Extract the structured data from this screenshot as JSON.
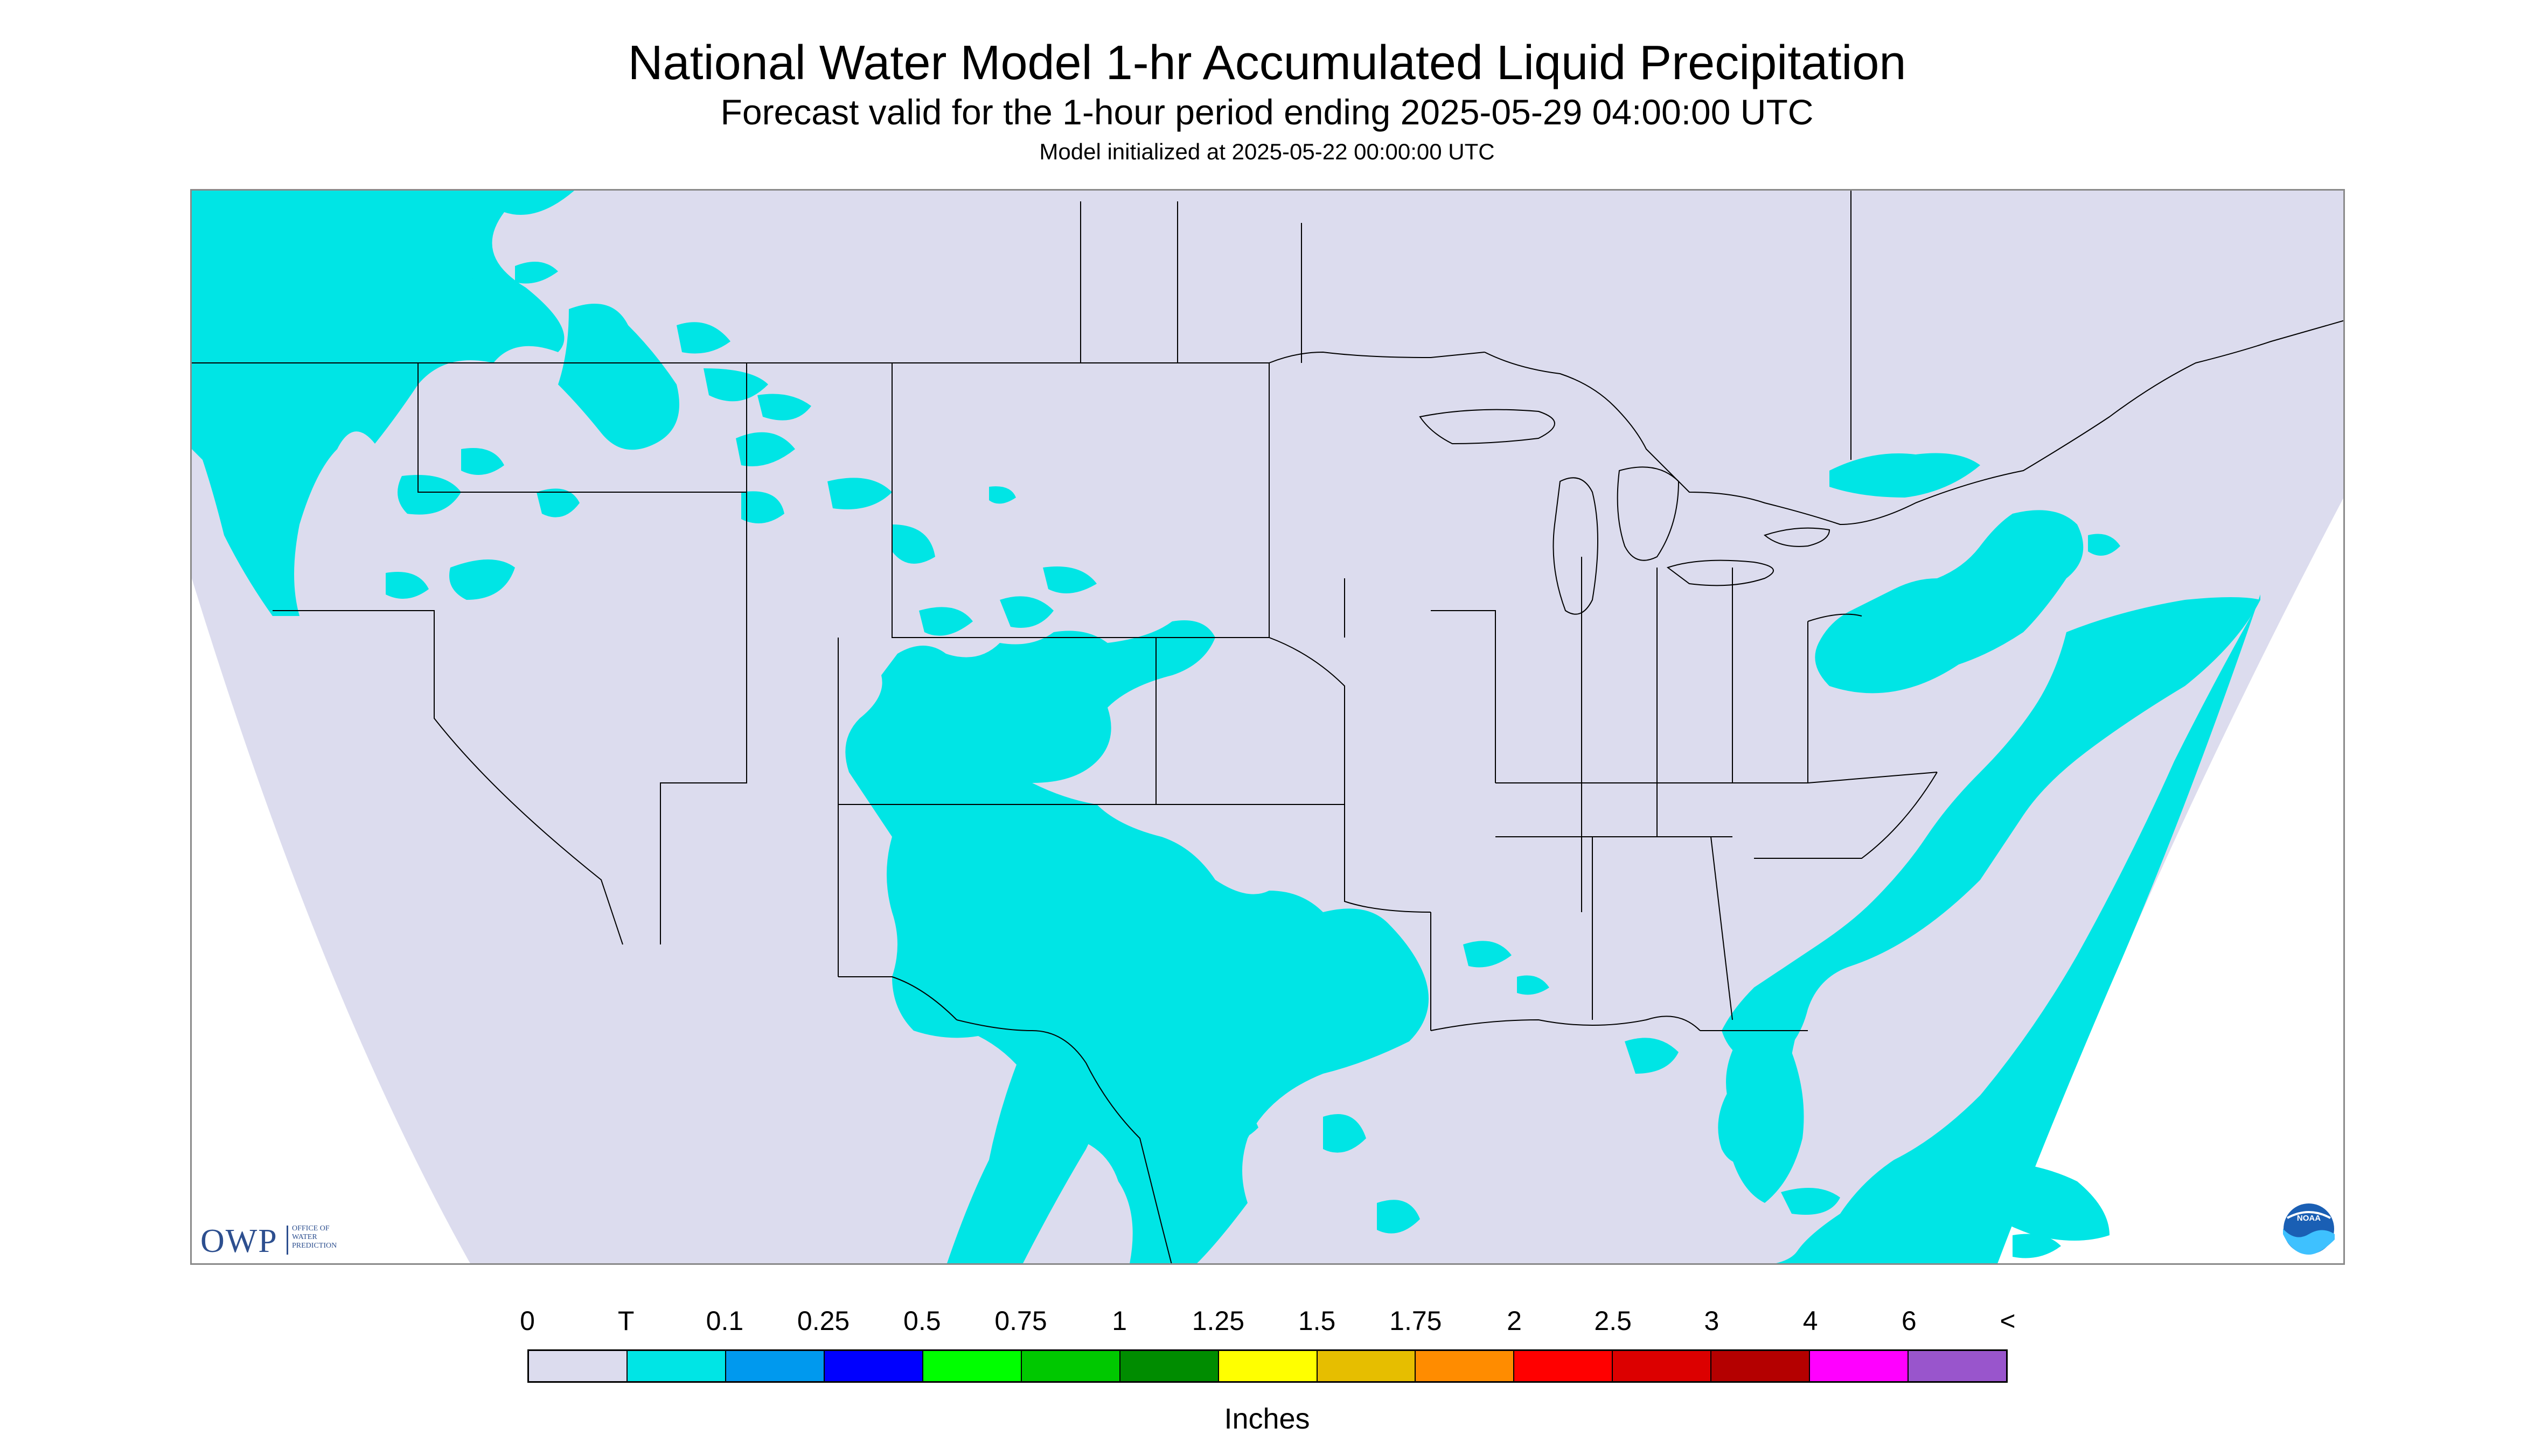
{
  "header": {
    "title": "National Water Model 1-hr Accumulated Liquid Precipitation",
    "subtitle": "Forecast valid for the 1-hour period ending 2025-05-29 04:00:00 UTC",
    "init_line": "Model initialized at 2025-05-22 00:00:00 UTC"
  },
  "logos": {
    "owp_letters": "OWP",
    "owp_full": "OFFICE OF\nWATER\nPREDICTION",
    "noaa": "NOAA"
  },
  "map": {
    "background_color": "#dcdcee",
    "land_outline_color": "#000000",
    "precip_color": "#00e5e5",
    "outside_color": "#ffffff"
  },
  "legend": {
    "labels": [
      "0",
      "T",
      "0.1",
      "0.25",
      "0.5",
      "0.75",
      "1",
      "1.25",
      "1.5",
      "1.75",
      "2",
      "2.5",
      "3",
      "4",
      "6",
      "<"
    ],
    "colors": [
      "#dcdcee",
      "#00e5e5",
      "#0099ee",
      "#0000ff",
      "#00ff00",
      "#00c800",
      "#008c00",
      "#ffff00",
      "#e6be00",
      "#ff8c00",
      "#ff0000",
      "#dc0000",
      "#b40000",
      "#ff00ff",
      "#9955cc"
    ],
    "units": "Inches"
  }
}
